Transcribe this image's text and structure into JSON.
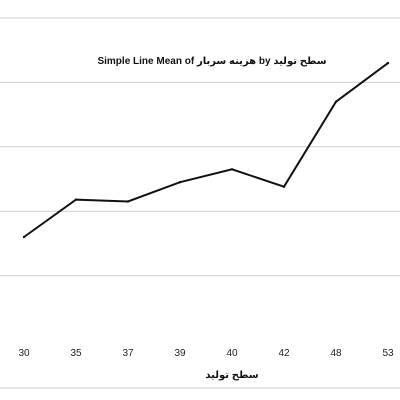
{
  "chart_data": {
    "type": "line",
    "title": "Simple Line Mean of هزينه سربار by سطح توليد",
    "xlabel": "سطح توليد",
    "ylabel": "",
    "categories": [
      "30",
      "35",
      "37",
      "39",
      "40",
      "42",
      "48",
      "53"
    ],
    "values": [
      1.6,
      2.18,
      2.15,
      2.45,
      2.65,
      2.38,
      3.7,
      4.3
    ],
    "series": [
      {
        "values": [
          1.6,
          2.18,
          2.15,
          2.45,
          2.65,
          2.38,
          3.7,
          4.3
        ]
      }
    ],
    "ylim": [
      0,
      5
    ],
    "grid": "horizontal",
    "legend": "none",
    "line_color": "#111111",
    "grid_color": "#cfcfcf"
  }
}
